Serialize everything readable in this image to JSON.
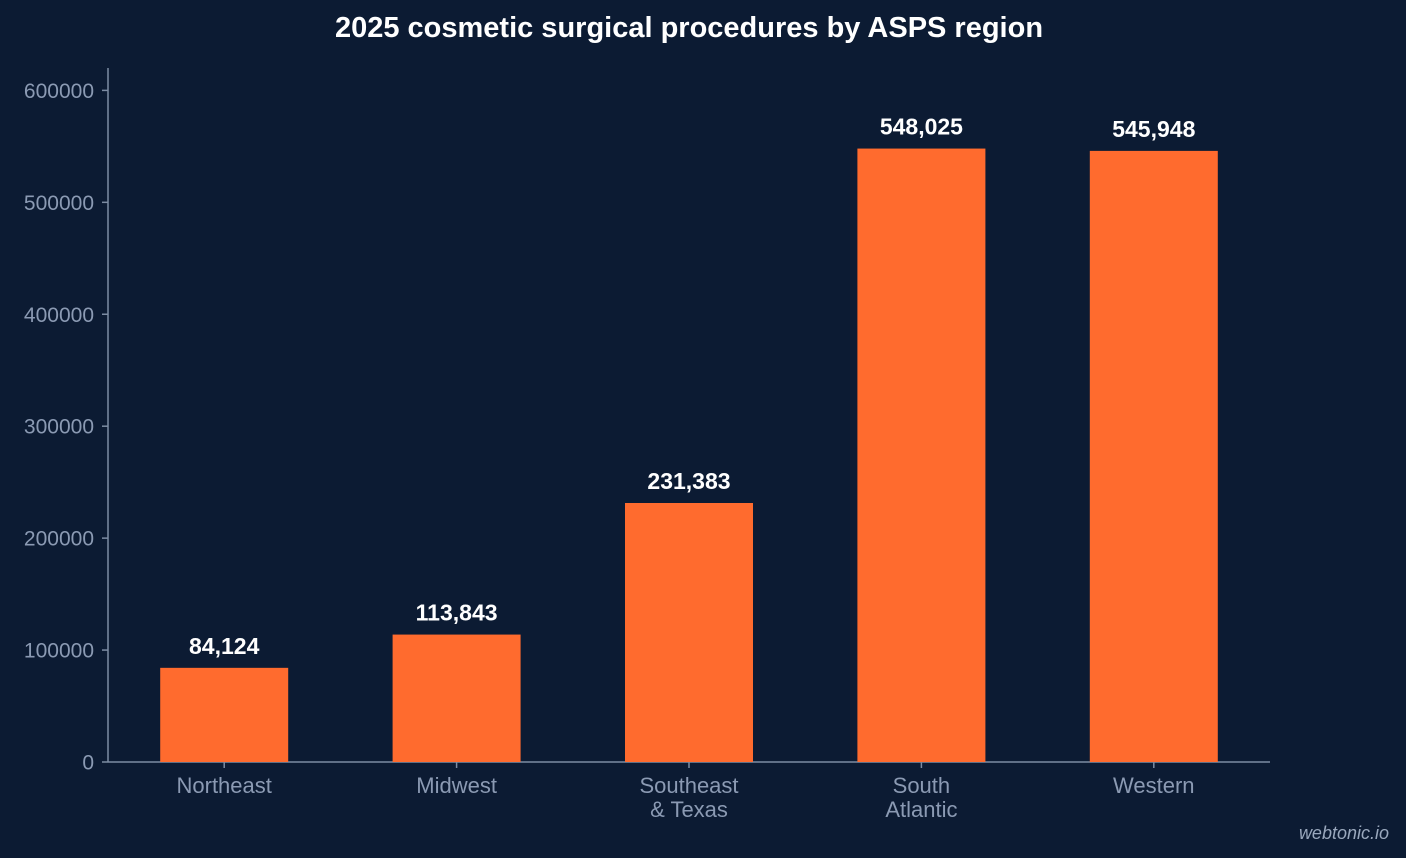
{
  "chart_data": {
    "type": "bar",
    "title": "2025 cosmetic surgical procedures by ASPS region",
    "categories": [
      [
        "Northeast"
      ],
      [
        "Midwest"
      ],
      [
        "Southeast",
        "& Texas"
      ],
      [
        "South",
        "Atlantic"
      ],
      [
        "Western"
      ]
    ],
    "values": [
      84124,
      113843,
      231383,
      548025,
      545948
    ],
    "value_labels": [
      "84,124",
      "113,843",
      "231,383",
      "548,025",
      "545,948"
    ],
    "yticks": [
      0,
      100000,
      200000,
      300000,
      400000,
      500000,
      600000
    ],
    "ytick_labels": [
      "0",
      "100000",
      "200000",
      "300000",
      "400000",
      "500000",
      "600000"
    ],
    "ylim": [
      0,
      620000
    ],
    "xlabel": "",
    "ylabel": "",
    "grid": false,
    "legend": "none",
    "bar_color": "#ff6b2e",
    "background_color": "#0c1b33"
  },
  "watermark": "webtonic.io"
}
